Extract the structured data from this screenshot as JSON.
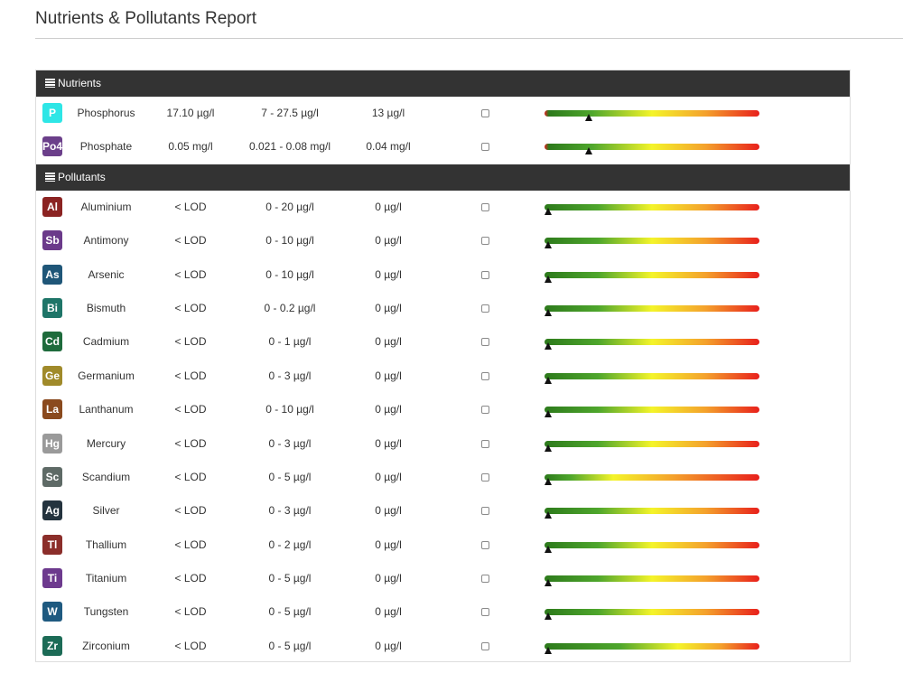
{
  "page": {
    "title": "Nutrients & Pollutants Report"
  },
  "sections": [
    {
      "label": "Nutrients",
      "icon": "menu-icon",
      "rows": [
        {
          "symbol": "P",
          "name": "Phosphorus",
          "value": "17.10 µg/l",
          "range": "7 - 27.5 µg/l",
          "target": "13 µg/l",
          "checked": false,
          "badge_color": "#2ee6e6",
          "gauge_style": "nut",
          "gauge_level": 0.19
        },
        {
          "symbol": "Po4",
          "name": "Phosphate",
          "value": "0.05 mg/l",
          "range": "0.021 - 0.08 mg/l",
          "target": "0.04 mg/l",
          "checked": false,
          "badge_color": "#6b3f8a",
          "gauge_style": "nut",
          "gauge_level": 0.19
        }
      ]
    },
    {
      "label": "Pollutants",
      "icon": "menu-icon",
      "rows": [
        {
          "symbol": "Al",
          "name": "Aluminium",
          "value": "< LOD",
          "range": "0 - 20 µg/l",
          "target": "0 µg/l",
          "checked": false,
          "badge_color": "#8b2322",
          "gauge_style": "std",
          "gauge_level": 0
        },
        {
          "symbol": "Sb",
          "name": "Antimony",
          "value": "< LOD",
          "range": "0 - 10 µg/l",
          "target": "0 µg/l",
          "checked": false,
          "badge_color": "#6b3a8a",
          "gauge_style": "std",
          "gauge_level": 0
        },
        {
          "symbol": "As",
          "name": "Arsenic",
          "value": "< LOD",
          "range": "0 - 10 µg/l",
          "target": "0 µg/l",
          "checked": false,
          "badge_color": "#1f5678",
          "gauge_style": "std",
          "gauge_level": 0
        },
        {
          "symbol": "Bi",
          "name": "Bismuth",
          "value": "< LOD",
          "range": "0 - 0.2 µg/l",
          "target": "0 µg/l",
          "checked": false,
          "badge_color": "#1e7568",
          "gauge_style": "std",
          "gauge_level": 0
        },
        {
          "symbol": "Cd",
          "name": "Cadmium",
          "value": "< LOD",
          "range": "0 - 1 µg/l",
          "target": "0 µg/l",
          "checked": false,
          "badge_color": "#1e6b3c",
          "gauge_style": "std",
          "gauge_level": 0
        },
        {
          "symbol": "Ge",
          "name": "Germanium",
          "value": "< LOD",
          "range": "0 - 3 µg/l",
          "target": "0 µg/l",
          "checked": false,
          "badge_color": "#a08a2a",
          "gauge_style": "std",
          "gauge_level": 0
        },
        {
          "symbol": "La",
          "name": "Lanthanum",
          "value": "< LOD",
          "range": "0 - 10 µg/l",
          "target": "0 µg/l",
          "checked": false,
          "badge_color": "#8a4a1e",
          "gauge_style": "std",
          "gauge_level": 0
        },
        {
          "symbol": "Hg",
          "name": "Mercury",
          "value": "< LOD",
          "range": "0 - 3 µg/l",
          "target": "0 µg/l",
          "checked": false,
          "badge_color": "#9a9a9a",
          "gauge_style": "std",
          "gauge_level": 0
        },
        {
          "symbol": "Sc",
          "name": "Scandium",
          "value": "< LOD",
          "range": "0 - 5 µg/l",
          "target": "0 µg/l",
          "checked": false,
          "badge_color": "#5e6a66",
          "gauge_style": "early",
          "gauge_level": 0
        },
        {
          "symbol": "Ag",
          "name": "Silver",
          "value": "< LOD",
          "range": "0 - 3 µg/l",
          "target": "0 µg/l",
          "checked": false,
          "badge_color": "#24333e",
          "gauge_style": "std",
          "gauge_level": 0
        },
        {
          "symbol": "Tl",
          "name": "Thallium",
          "value": "< LOD",
          "range": "0 - 2 µg/l",
          "target": "0 µg/l",
          "checked": false,
          "badge_color": "#8b2e2a",
          "gauge_style": "std",
          "gauge_level": 0
        },
        {
          "symbol": "Ti",
          "name": "Titanium",
          "value": "< LOD",
          "range": "0 - 5 µg/l",
          "target": "0 µg/l",
          "checked": false,
          "badge_color": "#6d3a8e",
          "gauge_style": "std",
          "gauge_level": 0
        },
        {
          "symbol": "W",
          "name": "Tungsten",
          "value": "< LOD",
          "range": "0 - 5 µg/l",
          "target": "0 µg/l",
          "checked": false,
          "badge_color": "#1f5a80",
          "gauge_style": "std",
          "gauge_level": 0
        },
        {
          "symbol": "Zr",
          "name": "Zirconium",
          "value": "< LOD",
          "range": "0 - 5 µg/l",
          "target": "0 µg/l",
          "checked": false,
          "badge_color": "#1c6b56",
          "gauge_style": "late",
          "gauge_level": 0
        }
      ]
    }
  ]
}
